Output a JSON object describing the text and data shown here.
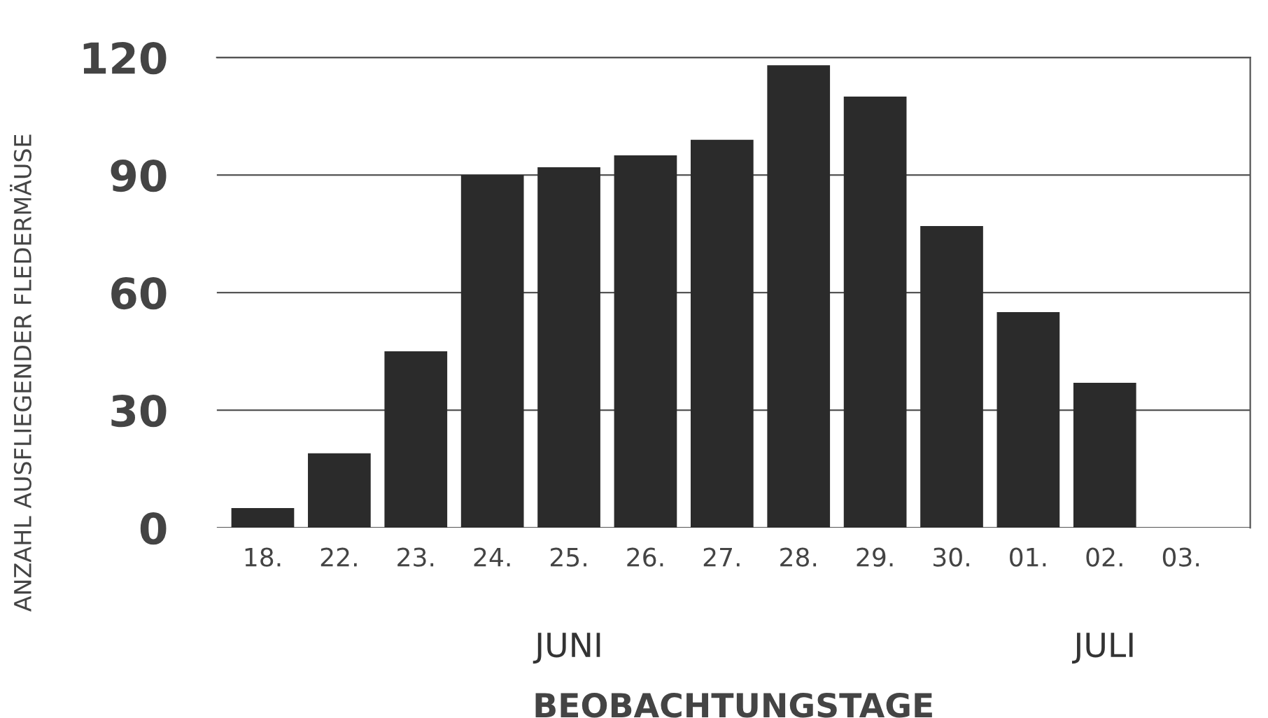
{
  "chart_data": {
    "type": "bar",
    "xlabel": "BEOBACHTUNGSTAGE",
    "ylabel": "ANZAHL AUSFLIEGENDER FLEDERMÄUSE",
    "categories": [
      "18.",
      "22.",
      "23.",
      "24.",
      "25.",
      "26.",
      "27.",
      "28.",
      "29.",
      "30.",
      "01.",
      "02.",
      "03."
    ],
    "values": [
      5,
      19,
      45,
      90,
      92,
      95,
      99,
      118,
      110,
      77,
      55,
      37,
      0
    ],
    "color": "#2b2b2b",
    "ylim": [
      0,
      120
    ],
    "yticks": [
      0,
      30,
      60,
      90,
      120
    ],
    "grid": "y",
    "annotations": [
      "JUNI",
      "JULI"
    ]
  }
}
